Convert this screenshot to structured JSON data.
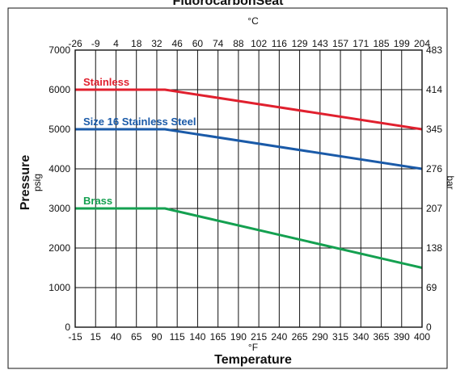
{
  "chart_data": {
    "type": "line",
    "title": "FluorocarbonSeat",
    "xlabel": "Temperature",
    "x_unit_bottom": "°F",
    "x_unit_top": "°C",
    "ylabel_left": "Pressure",
    "ylabel_left_unit": "psig",
    "ylabel_right_unit": "bar",
    "xlim": [
      -15,
      400
    ],
    "ylim": [
      0,
      7000
    ],
    "grid": true,
    "x_ticks_bottom": [
      "-15",
      "15",
      "40",
      "65",
      "90",
      "115",
      "140",
      "165",
      "190",
      "215",
      "240",
      "265",
      "290",
      "315",
      "340",
      "365",
      "390",
      "400"
    ],
    "x_ticks_top": [
      "-26",
      "-9",
      "4",
      "18",
      "32",
      "46",
      "60",
      "74",
      "88",
      "102",
      "116",
      "129",
      "143",
      "157",
      "171",
      "185",
      "199",
      "204"
    ],
    "y_ticks_left": [
      "0",
      "1000",
      "2000",
      "3000",
      "4000",
      "5000",
      "6000",
      "7000"
    ],
    "y_ticks_right": [
      "0",
      "69",
      "138",
      "207",
      "276",
      "345",
      "414",
      "483"
    ],
    "series": [
      {
        "name": "Stainless",
        "color": "#e0202e",
        "x": [
          -15,
          100,
          400
        ],
        "y": [
          6000,
          6000,
          5000
        ]
      },
      {
        "name": "Size 16 Stainless Steel",
        "color": "#1a5aa8",
        "x": [
          -15,
          100,
          400
        ],
        "y": [
          5000,
          5000,
          4000
        ]
      },
      {
        "name": "Brass",
        "color": "#14a050",
        "x": [
          -15,
          100,
          400
        ],
        "y": [
          3000,
          3000,
          1500
        ]
      }
    ]
  }
}
